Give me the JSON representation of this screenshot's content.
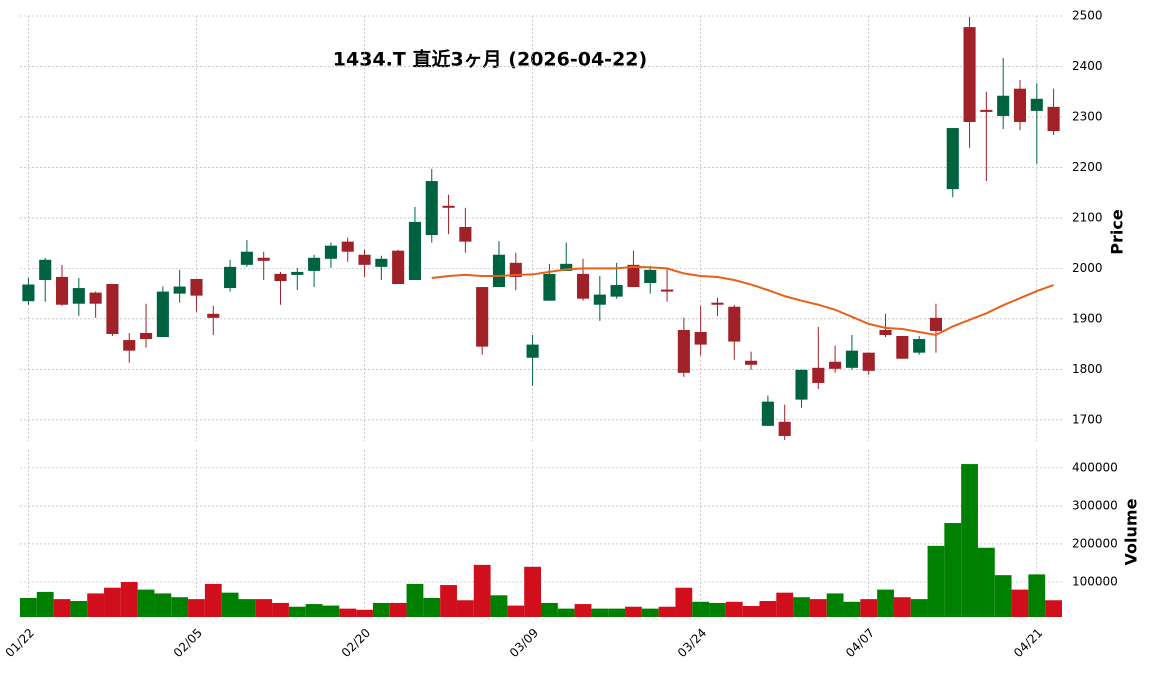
{
  "chart_data": {
    "type": "candlestick",
    "title": "1434.T  直近3ヶ月  (2026-04-22)",
    "y_label": "Price",
    "y2_label": "Volume",
    "categories": [
      "01/22",
      null,
      null,
      null,
      null,
      null,
      null,
      null,
      null,
      null,
      "02/05",
      null,
      null,
      null,
      null,
      null,
      null,
      null,
      null,
      null,
      "02/20",
      null,
      null,
      null,
      null,
      null,
      null,
      null,
      null,
      null,
      "03/09",
      null,
      null,
      null,
      null,
      null,
      null,
      null,
      null,
      null,
      "03/24",
      null,
      null,
      null,
      null,
      null,
      null,
      null,
      null,
      null,
      "04/07",
      null,
      null,
      null,
      null,
      null,
      null,
      null,
      null,
      null,
      "04/21",
      null
    ],
    "open": [
      1935,
      1977,
      1983,
      1930,
      1952,
      1969,
      1858,
      1872,
      1864,
      1950,
      1979,
      1910,
      1961,
      2007,
      2021,
      1989,
      1987,
      1995,
      2019,
      2053,
      2027,
      2003,
      2035,
      1977,
      2066,
      2124,
      2082,
      1963,
      1963,
      2011,
      1823,
      1936,
      1995,
      1989,
      1928,
      1944,
      2007,
      1971,
      1958,
      1878,
      1874,
      1932,
      1924,
      1817,
      1688,
      1696,
      1740,
      1803,
      1815,
      1803,
      1833,
      1878,
      1866,
      1833,
      1902,
      2157,
      2478,
      2314,
      2302,
      2356,
      2312,
      2320
    ],
    "high": [
      1981,
      2021,
      2007,
      1981,
      1954,
      1969,
      1872,
      1930,
      1964,
      1997,
      1979,
      1926,
      2017,
      2056,
      2033,
      1993,
      2001,
      2027,
      2051,
      2061,
      2037,
      2025,
      2037,
      2122,
      2197,
      2146,
      2120,
      1963,
      2054,
      2031,
      1868,
      2009,
      2051,
      2019,
      1985,
      2011,
      2035,
      2005,
      2001,
      1902,
      1926,
      1942,
      1928,
      1835,
      1748,
      1730,
      1799,
      1884,
      1847,
      1868,
      1833,
      1910,
      1866,
      1866,
      1930,
      2278,
      2498,
      2350,
      2417,
      2373,
      2367,
      2356
    ],
    "low": [
      1928,
      1934,
      1926,
      1906,
      1902,
      1866,
      1813,
      1843,
      1864,
      1932,
      1914,
      1868,
      1954,
      2003,
      1977,
      1928,
      1957,
      1963,
      2001,
      2013,
      1983,
      1977,
      1969,
      1977,
      2051,
      2068,
      2031,
      1829,
      1963,
      1957,
      1767,
      1936,
      1995,
      1936,
      1896,
      1940,
      1963,
      1950,
      1934,
      1785,
      1827,
      1906,
      1819,
      1799,
      1688,
      1660,
      1724,
      1761,
      1793,
      1799,
      1789,
      1864,
      1821,
      1829,
      1833,
      2141,
      2239,
      2173,
      2276,
      2274,
      2207,
      2264
    ],
    "close": [
      1968,
      2017,
      1928,
      1961,
      1930,
      1870,
      1837,
      1860,
      1954,
      1964,
      1946,
      1902,
      2003,
      2033,
      2015,
      1975,
      1993,
      2021,
      2045,
      2033,
      2007,
      2019,
      1969,
      2092,
      2173,
      2120,
      2053,
      1845,
      2027,
      1983,
      1849,
      1989,
      2009,
      1940,
      1948,
      1967,
      1963,
      1997,
      1954,
      1793,
      1849,
      1928,
      1855,
      1809,
      1736,
      1668,
      1799,
      1773,
      1801,
      1837,
      1797,
      1868,
      1821,
      1860,
      1876,
      2278,
      2290,
      2310,
      2342,
      2290,
      2336,
      2272
    ],
    "volume": [
      58000,
      74000,
      55000,
      50000,
      70000,
      85000,
      100000,
      80000,
      70000,
      60000,
      55000,
      95000,
      72000,
      55000,
      55000,
      45000,
      35000,
      42000,
      38000,
      30000,
      27000,
      45000,
      45000,
      95000,
      58000,
      92000,
      52000,
      145000,
      65000,
      38000,
      140000,
      45000,
      30000,
      42000,
      30000,
      30000,
      35000,
      30000,
      35000,
      85000,
      48000,
      45000,
      48000,
      37000,
      50000,
      72000,
      60000,
      55000,
      70000,
      48000,
      55000,
      80000,
      60000,
      55000,
      195000,
      255000,
      410000,
      190000,
      118000,
      80000,
      120000,
      52000
    ],
    "ma": [
      null,
      null,
      null,
      null,
      null,
      null,
      null,
      null,
      null,
      null,
      null,
      null,
      null,
      null,
      null,
      null,
      null,
      null,
      null,
      null,
      null,
      null,
      null,
      null,
      1981,
      1985,
      1987,
      1985,
      1985,
      1987,
      1988,
      1993,
      1998,
      2000,
      2000,
      2000,
      2003,
      2002,
      2000,
      1990,
      1985,
      1983,
      1977,
      1968,
      1957,
      1945,
      1936,
      1928,
      1918,
      1904,
      1890,
      1882,
      1880,
      1874,
      1868,
      1885,
      1898,
      1911,
      1927,
      1941,
      1955,
      1967
    ],
    "up_color": "#006340",
    "down_color": "#a02128",
    "volume_up_color": "#008000",
    "volume_down_color": "#d10e1b",
    "ma_color": "#e8601c",
    "ylim": [
      1658,
      2500
    ],
    "yticks": [
      1700,
      1800,
      1900,
      2000,
      2100,
      2200,
      2300,
      2400,
      2500
    ],
    "y2lim": [
      8000,
      447000
    ],
    "y2ticks": [
      100000,
      200000,
      300000,
      400000
    ],
    "grid": true
  }
}
